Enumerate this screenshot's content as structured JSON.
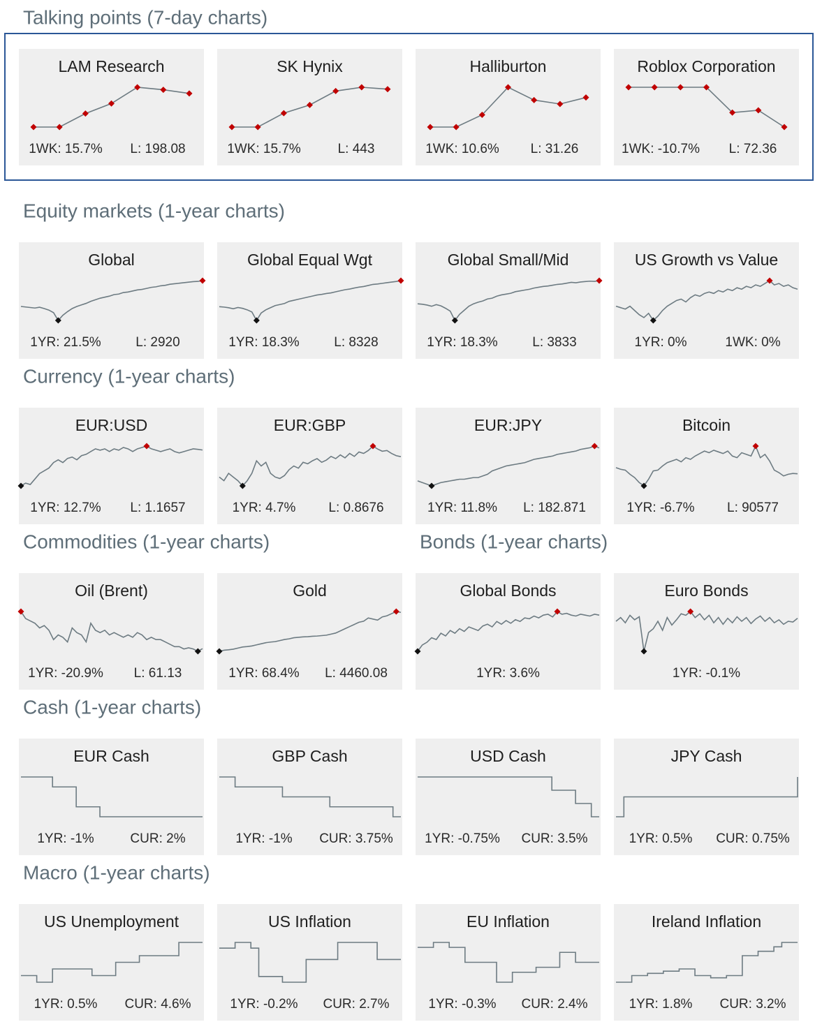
{
  "sections": [
    {
      "title": "Talking points (7-day charts)",
      "boxed": true,
      "markers": "all",
      "step": false,
      "cards": [
        {
          "title": "LAM Research",
          "stats": [
            "1WK: 15.7%",
            "L: 198.08"
          ],
          "values": [
            171.2,
            171.2,
            182,
            190,
            203,
            201,
            198.08
          ]
        },
        {
          "title": "SK Hynix",
          "stats": [
            "1WK: 15.7%",
            "L: 443"
          ],
          "values": [
            383,
            383,
            405,
            418,
            440,
            446,
            443
          ]
        },
        {
          "title": "Halliburton",
          "stats": [
            "1WK: 10.6%",
            "L: 31.26"
          ],
          "values": [
            28.26,
            28.26,
            29.5,
            32.3,
            31.0,
            30.6,
            31.26
          ]
        },
        {
          "title": "Roblox Corporation",
          "stats": [
            "1WK: -10.7%",
            "L: 72.36"
          ],
          "values": [
            81,
            81,
            81,
            81,
            75.5,
            76,
            72.36
          ]
        }
      ]
    },
    {
      "title": "Equity markets (1-year charts)",
      "boxed": false,
      "markers": "extremes",
      "step": false,
      "cards": [
        {
          "title": "Global",
          "stats": [
            "1YR: 21.5%",
            "L: 2920"
          ],
          "values": [
            2420,
            2410,
            2400,
            2390,
            2405,
            2380,
            2350,
            2300,
            2150,
            2250,
            2320,
            2380,
            2420,
            2450,
            2480,
            2520,
            2550,
            2580,
            2600,
            2620,
            2650,
            2660,
            2690,
            2700,
            2720,
            2740,
            2750,
            2770,
            2790,
            2800,
            2820,
            2830,
            2850,
            2860,
            2870,
            2880,
            2890,
            2900,
            2905,
            2920
          ]
        },
        {
          "title": "Global Equal Wgt",
          "stats": [
            "1YR: 18.3%",
            "L: 8328"
          ],
          "values": [
            7100,
            7080,
            7050,
            7000,
            7060,
            7020,
            6950,
            6850,
            6450,
            6800,
            6950,
            7050,
            7150,
            7200,
            7250,
            7350,
            7400,
            7450,
            7500,
            7550,
            7600,
            7650,
            7680,
            7720,
            7750,
            7800,
            7850,
            7900,
            7930,
            7980,
            8020,
            8050,
            8100,
            8150,
            8170,
            8200,
            8230,
            8260,
            8290,
            8328
          ]
        },
        {
          "title": "Global Small/Mid",
          "stats": [
            "1YR: 18.3%",
            "L: 3833"
          ],
          "values": [
            3260,
            3250,
            3230,
            3200,
            3240,
            3210,
            3150,
            3080,
            2850,
            3000,
            3100,
            3200,
            3260,
            3300,
            3330,
            3380,
            3400,
            3450,
            3480,
            3500,
            3520,
            3560,
            3580,
            3600,
            3620,
            3650,
            3670,
            3690,
            3700,
            3720,
            3740,
            3750,
            3770,
            3790,
            3780,
            3800,
            3810,
            3820,
            3815,
            3833
          ]
        },
        {
          "title": "US Growth vs Value",
          "stats": [
            "1YR: 0%",
            "1WK: 0%"
          ],
          "values": [
            1.0,
            0.99,
            0.98,
            1.0,
            0.97,
            0.94,
            0.92,
            0.95,
            0.9,
            0.93,
            0.97,
            1.0,
            1.02,
            1.04,
            1.05,
            1.03,
            1.06,
            1.08,
            1.07,
            1.09,
            1.1,
            1.09,
            1.11,
            1.1,
            1.12,
            1.11,
            1.13,
            1.12,
            1.14,
            1.13,
            1.15,
            1.14,
            1.16,
            1.18,
            1.15,
            1.16,
            1.14,
            1.15,
            1.13,
            1.12
          ]
        }
      ]
    },
    {
      "title": "Currency (1-year charts)",
      "boxed": false,
      "markers": "extremes",
      "step": false,
      "cards": [
        {
          "title": "EUR:USD",
          "stats": [
            "1YR: 12.7%",
            "L: 1.1657"
          ],
          "values": [
            1.035,
            1.045,
            1.04,
            1.06,
            1.08,
            1.09,
            1.1,
            1.12,
            1.13,
            1.12,
            1.135,
            1.14,
            1.13,
            1.145,
            1.15,
            1.16,
            1.17,
            1.165,
            1.17,
            1.16,
            1.17,
            1.165,
            1.175,
            1.17,
            1.16,
            1.17,
            1.175,
            1.18,
            1.17,
            1.165,
            1.16,
            1.165,
            1.17,
            1.16,
            1.155,
            1.16,
            1.165,
            1.17,
            1.168,
            1.1657
          ]
        },
        {
          "title": "EUR:GBP",
          "stats": [
            "1YR: 4.7%",
            "L: 0.8676"
          ],
          "values": [
            0.84,
            0.835,
            0.845,
            0.84,
            0.835,
            0.828,
            0.835,
            0.845,
            0.862,
            0.855,
            0.86,
            0.845,
            0.84,
            0.838,
            0.842,
            0.85,
            0.855,
            0.852,
            0.86,
            0.858,
            0.862,
            0.865,
            0.86,
            0.863,
            0.868,
            0.865,
            0.87,
            0.866,
            0.872,
            0.868,
            0.874,
            0.872,
            0.876,
            0.882,
            0.878,
            0.875,
            0.876,
            0.872,
            0.869,
            0.8676
          ]
        },
        {
          "title": "EUR:JPY",
          "stats": [
            "1YR: 11.8%",
            "L: 182.871"
          ],
          "values": [
            163,
            162,
            161,
            160,
            161,
            162,
            162.5,
            163,
            163.5,
            164,
            164,
            164.5,
            165,
            165,
            166,
            167,
            169,
            170,
            171,
            172,
            172.5,
            173,
            173.5,
            174,
            175,
            176,
            176.5,
            177,
            177.5,
            178,
            179,
            179.5,
            180,
            180.5,
            181,
            182,
            182.5,
            183,
            184,
            182.871
          ]
        },
        {
          "title": "Bitcoin",
          "stats": [
            "1YR: -6.7%",
            "L: 90577"
          ],
          "values": [
            98000,
            96000,
            95000,
            90000,
            86000,
            80000,
            76000,
            84000,
            94000,
            95000,
            100000,
            104000,
            106000,
            108000,
            105000,
            110000,
            108000,
            112000,
            115000,
            118000,
            116000,
            119000,
            117000,
            115000,
            118000,
            112000,
            110000,
            116000,
            114000,
            112000,
            124000,
            110000,
            114000,
            106000,
            95000,
            92000,
            88000,
            90000,
            91000,
            90577
          ]
        }
      ]
    },
    {
      "title": "Commodities (1-year charts)",
      "boxed": false,
      "markers": "extremes",
      "step": false,
      "cards": [
        {
          "title": "Oil (Brent)",
          "stats": [
            "1YR: -20.9%",
            "L: 61.13"
          ],
          "values": [
            77,
            74,
            73,
            72,
            70,
            71,
            69,
            65,
            67,
            66,
            64,
            70,
            68,
            67,
            64,
            72,
            69,
            68,
            69,
            67,
            68,
            67,
            66,
            67,
            66,
            68,
            67,
            65,
            66,
            65,
            65,
            64,
            63,
            62,
            62,
            61,
            61.5,
            61,
            60,
            61.13
          ]
        },
        {
          "title": "Gold",
          "stats": [
            "1YR: 68.4%",
            "L: 4460.08"
          ],
          "values": [
            2650,
            2700,
            2720,
            2750,
            2800,
            2850,
            2870,
            2900,
            2950,
            3000,
            3050,
            3080,
            3100,
            3150,
            3200,
            3230,
            3280,
            3300,
            3320,
            3330,
            3350,
            3360,
            3380,
            3400,
            3450,
            3500,
            3600,
            3700,
            3800,
            3900,
            4000,
            4050,
            4200,
            4150,
            4100,
            4250,
            4300,
            4400,
            4500,
            4460.08
          ]
        }
      ]
    },
    {
      "title": "Bonds (1-year charts)",
      "boxed": false,
      "markers": "extremes",
      "step": false,
      "cards": [
        {
          "title": "Global Bonds",
          "stats": [
            "1YR: 3.6%"
          ],
          "values": [
            99.5,
            100.2,
            100.5,
            101,
            100.8,
            101.5,
            101.2,
            101.8,
            101.5,
            102,
            101.7,
            102.2,
            102,
            101.8,
            102.3,
            102.5,
            102.2,
            102.8,
            102.5,
            102.9,
            102.6,
            103,
            102.8,
            103.2,
            103.1,
            103.4,
            103.2,
            103.5,
            103.6,
            103.3,
            103.9,
            103.6,
            103.7,
            103.5,
            103.4,
            103.6,
            103.5,
            103.4,
            103.6,
            103.5
          ]
        },
        {
          "title": "Euro Bonds",
          "stats": [
            "1YR: -0.1%"
          ],
          "values": [
            101,
            101.5,
            100.8,
            101.8,
            101.2,
            101.6,
            97,
            99.5,
            100,
            101,
            99.8,
            101.5,
            100.5,
            101.2,
            102,
            101.8,
            102.3,
            101.5,
            102,
            101.2,
            101.8,
            100.8,
            101.5,
            100.6,
            101.4,
            100.8,
            101.6,
            101,
            101.5,
            100.7,
            101.3,
            101.7,
            101,
            101.5,
            100.8,
            101.2,
            100.6,
            101,
            100.9,
            101.4
          ]
        }
      ]
    },
    {
      "title": "Cash (1-year charts)",
      "boxed": false,
      "markers": "none",
      "step": true,
      "cards": [
        {
          "title": "EUR Cash",
          "stats": [
            "1YR: -1%",
            "CUR: 2%"
          ],
          "values": [
            3,
            3,
            3,
            3,
            2.75,
            2.75,
            2.75,
            2.25,
            2.25,
            2.25,
            2,
            2,
            2,
            2,
            2,
            2,
            2,
            2,
            2,
            2,
            2,
            2,
            2,
            2
          ]
        },
        {
          "title": "GBP Cash",
          "stats": [
            "1YR: -1%",
            "CUR: 3.75%"
          ],
          "values": [
            4.75,
            4.75,
            4.5,
            4.5,
            4.5,
            4.5,
            4.5,
            4.5,
            4.25,
            4.25,
            4.25,
            4.25,
            4.25,
            4.25,
            4,
            4,
            4,
            4,
            4,
            4,
            4,
            4,
            3.75,
            3.75
          ]
        },
        {
          "title": "USD Cash",
          "stats": [
            "1YR: -0.75%",
            "CUR: 3.5%"
          ],
          "values": [
            4.25,
            4.25,
            4.25,
            4.25,
            4.25,
            4.25,
            4.25,
            4.25,
            4.25,
            4.25,
            4.25,
            4.25,
            4.25,
            4.25,
            4.25,
            4.25,
            4.25,
            4,
            4,
            4,
            3.75,
            3.75,
            3.5,
            3.5
          ]
        },
        {
          "title": "JPY Cash",
          "stats": [
            "1YR: 0.5%",
            "CUR: 0.75%"
          ],
          "values": [
            0.25,
            0.5,
            0.5,
            0.5,
            0.5,
            0.5,
            0.5,
            0.5,
            0.5,
            0.5,
            0.5,
            0.5,
            0.5,
            0.5,
            0.5,
            0.5,
            0.5,
            0.5,
            0.5,
            0.5,
            0.5,
            0.5,
            0.5,
            0.75
          ]
        }
      ]
    },
    {
      "title": "Macro (1-year charts)",
      "boxed": false,
      "markers": "none",
      "step": true,
      "cards": [
        {
          "title": "US Unemployment",
          "stats": [
            "1YR: 0.5%",
            "CUR: 4.6%"
          ],
          "values": [
            4.1,
            4.1,
            4.0,
            4.0,
            4.2,
            4.2,
            4.2,
            4.2,
            4.2,
            4.1,
            4.1,
            4.1,
            4.3,
            4.3,
            4.3,
            4.4,
            4.4,
            4.4,
            4.4,
            4.4,
            4.6,
            4.6,
            4.6,
            4.6
          ]
        },
        {
          "title": "US Inflation",
          "stats": [
            "1YR: -0.2%",
            "CUR: 2.7%"
          ],
          "values": [
            2.9,
            2.9,
            3.0,
            3.0,
            2.9,
            2.4,
            2.4,
            2.4,
            2.3,
            2.3,
            2.3,
            2.7,
            2.7,
            2.7,
            2.7,
            3.0,
            3.0,
            3.0,
            3.0,
            3.0,
            2.7,
            2.7,
            2.7,
            2.7
          ]
        },
        {
          "title": "EU Inflation",
          "stats": [
            "1YR: -0.3%",
            "CUR: 2.4%"
          ],
          "values": [
            2.7,
            2.7,
            2.8,
            2.8,
            2.7,
            2.7,
            2.4,
            2.4,
            2.4,
            2.4,
            2.0,
            2.0,
            2.2,
            2.2,
            2.2,
            2.3,
            2.3,
            2.3,
            2.6,
            2.6,
            2.4,
            2.4,
            2.4,
            2.4
          ]
        },
        {
          "title": "Ireland Inflation",
          "stats": [
            "1YR: 1.8%",
            "CUR: 3.2%"
          ],
          "values": [
            1.4,
            1.4,
            1.7,
            1.7,
            1.8,
            1.8,
            1.9,
            1.9,
            2.0,
            2.0,
            1.7,
            1.7,
            1.6,
            1.6,
            1.7,
            1.7,
            2.6,
            2.6,
            2.8,
            2.8,
            3.0,
            3.2,
            3.2,
            3.2
          ]
        }
      ]
    }
  ]
}
